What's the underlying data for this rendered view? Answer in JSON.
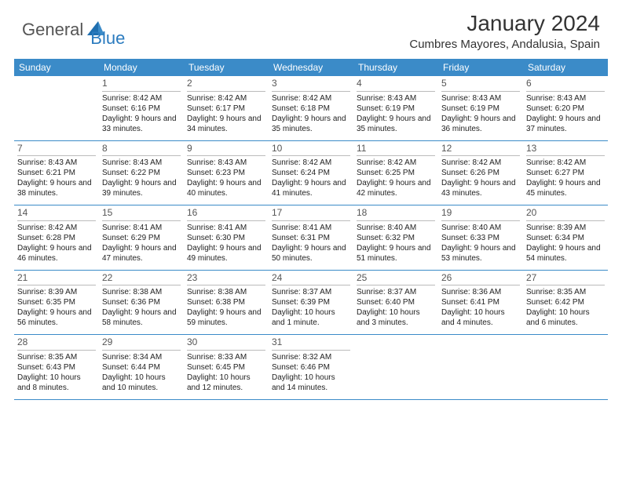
{
  "logo": {
    "part1": "General",
    "part2": "Blue"
  },
  "title": "January 2024",
  "location": "Cumbres Mayores, Andalusia, Spain",
  "colors": {
    "header_bg": "#3b8bc8",
    "header_text": "#ffffff",
    "rule": "#3b8bc8",
    "daynum": "#555555",
    "body_text": "#222222",
    "logo_gray": "#555555",
    "logo_blue": "#2b7bbf",
    "background": "#ffffff"
  },
  "day_names": [
    "Sunday",
    "Monday",
    "Tuesday",
    "Wednesday",
    "Thursday",
    "Friday",
    "Saturday"
  ],
  "weeks": [
    [
      {
        "n": "",
        "sr": "",
        "ss": "",
        "dl": ""
      },
      {
        "n": "1",
        "sr": "Sunrise: 8:42 AM",
        "ss": "Sunset: 6:16 PM",
        "dl": "Daylight: 9 hours and 33 minutes."
      },
      {
        "n": "2",
        "sr": "Sunrise: 8:42 AM",
        "ss": "Sunset: 6:17 PM",
        "dl": "Daylight: 9 hours and 34 minutes."
      },
      {
        "n": "3",
        "sr": "Sunrise: 8:42 AM",
        "ss": "Sunset: 6:18 PM",
        "dl": "Daylight: 9 hours and 35 minutes."
      },
      {
        "n": "4",
        "sr": "Sunrise: 8:43 AM",
        "ss": "Sunset: 6:19 PM",
        "dl": "Daylight: 9 hours and 35 minutes."
      },
      {
        "n": "5",
        "sr": "Sunrise: 8:43 AM",
        "ss": "Sunset: 6:19 PM",
        "dl": "Daylight: 9 hours and 36 minutes."
      },
      {
        "n": "6",
        "sr": "Sunrise: 8:43 AM",
        "ss": "Sunset: 6:20 PM",
        "dl": "Daylight: 9 hours and 37 minutes."
      }
    ],
    [
      {
        "n": "7",
        "sr": "Sunrise: 8:43 AM",
        "ss": "Sunset: 6:21 PM",
        "dl": "Daylight: 9 hours and 38 minutes."
      },
      {
        "n": "8",
        "sr": "Sunrise: 8:43 AM",
        "ss": "Sunset: 6:22 PM",
        "dl": "Daylight: 9 hours and 39 minutes."
      },
      {
        "n": "9",
        "sr": "Sunrise: 8:43 AM",
        "ss": "Sunset: 6:23 PM",
        "dl": "Daylight: 9 hours and 40 minutes."
      },
      {
        "n": "10",
        "sr": "Sunrise: 8:42 AM",
        "ss": "Sunset: 6:24 PM",
        "dl": "Daylight: 9 hours and 41 minutes."
      },
      {
        "n": "11",
        "sr": "Sunrise: 8:42 AM",
        "ss": "Sunset: 6:25 PM",
        "dl": "Daylight: 9 hours and 42 minutes."
      },
      {
        "n": "12",
        "sr": "Sunrise: 8:42 AM",
        "ss": "Sunset: 6:26 PM",
        "dl": "Daylight: 9 hours and 43 minutes."
      },
      {
        "n": "13",
        "sr": "Sunrise: 8:42 AM",
        "ss": "Sunset: 6:27 PM",
        "dl": "Daylight: 9 hours and 45 minutes."
      }
    ],
    [
      {
        "n": "14",
        "sr": "Sunrise: 8:42 AM",
        "ss": "Sunset: 6:28 PM",
        "dl": "Daylight: 9 hours and 46 minutes."
      },
      {
        "n": "15",
        "sr": "Sunrise: 8:41 AM",
        "ss": "Sunset: 6:29 PM",
        "dl": "Daylight: 9 hours and 47 minutes."
      },
      {
        "n": "16",
        "sr": "Sunrise: 8:41 AM",
        "ss": "Sunset: 6:30 PM",
        "dl": "Daylight: 9 hours and 49 minutes."
      },
      {
        "n": "17",
        "sr": "Sunrise: 8:41 AM",
        "ss": "Sunset: 6:31 PM",
        "dl": "Daylight: 9 hours and 50 minutes."
      },
      {
        "n": "18",
        "sr": "Sunrise: 8:40 AM",
        "ss": "Sunset: 6:32 PM",
        "dl": "Daylight: 9 hours and 51 minutes."
      },
      {
        "n": "19",
        "sr": "Sunrise: 8:40 AM",
        "ss": "Sunset: 6:33 PM",
        "dl": "Daylight: 9 hours and 53 minutes."
      },
      {
        "n": "20",
        "sr": "Sunrise: 8:39 AM",
        "ss": "Sunset: 6:34 PM",
        "dl": "Daylight: 9 hours and 54 minutes."
      }
    ],
    [
      {
        "n": "21",
        "sr": "Sunrise: 8:39 AM",
        "ss": "Sunset: 6:35 PM",
        "dl": "Daylight: 9 hours and 56 minutes."
      },
      {
        "n": "22",
        "sr": "Sunrise: 8:38 AM",
        "ss": "Sunset: 6:36 PM",
        "dl": "Daylight: 9 hours and 58 minutes."
      },
      {
        "n": "23",
        "sr": "Sunrise: 8:38 AM",
        "ss": "Sunset: 6:38 PM",
        "dl": "Daylight: 9 hours and 59 minutes."
      },
      {
        "n": "24",
        "sr": "Sunrise: 8:37 AM",
        "ss": "Sunset: 6:39 PM",
        "dl": "Daylight: 10 hours and 1 minute."
      },
      {
        "n": "25",
        "sr": "Sunrise: 8:37 AM",
        "ss": "Sunset: 6:40 PM",
        "dl": "Daylight: 10 hours and 3 minutes."
      },
      {
        "n": "26",
        "sr": "Sunrise: 8:36 AM",
        "ss": "Sunset: 6:41 PM",
        "dl": "Daylight: 10 hours and 4 minutes."
      },
      {
        "n": "27",
        "sr": "Sunrise: 8:35 AM",
        "ss": "Sunset: 6:42 PM",
        "dl": "Daylight: 10 hours and 6 minutes."
      }
    ],
    [
      {
        "n": "28",
        "sr": "Sunrise: 8:35 AM",
        "ss": "Sunset: 6:43 PM",
        "dl": "Daylight: 10 hours and 8 minutes."
      },
      {
        "n": "29",
        "sr": "Sunrise: 8:34 AM",
        "ss": "Sunset: 6:44 PM",
        "dl": "Daylight: 10 hours and 10 minutes."
      },
      {
        "n": "30",
        "sr": "Sunrise: 8:33 AM",
        "ss": "Sunset: 6:45 PM",
        "dl": "Daylight: 10 hours and 12 minutes."
      },
      {
        "n": "31",
        "sr": "Sunrise: 8:32 AM",
        "ss": "Sunset: 6:46 PM",
        "dl": "Daylight: 10 hours and 14 minutes."
      },
      {
        "n": "",
        "sr": "",
        "ss": "",
        "dl": ""
      },
      {
        "n": "",
        "sr": "",
        "ss": "",
        "dl": ""
      },
      {
        "n": "",
        "sr": "",
        "ss": "",
        "dl": ""
      }
    ]
  ]
}
